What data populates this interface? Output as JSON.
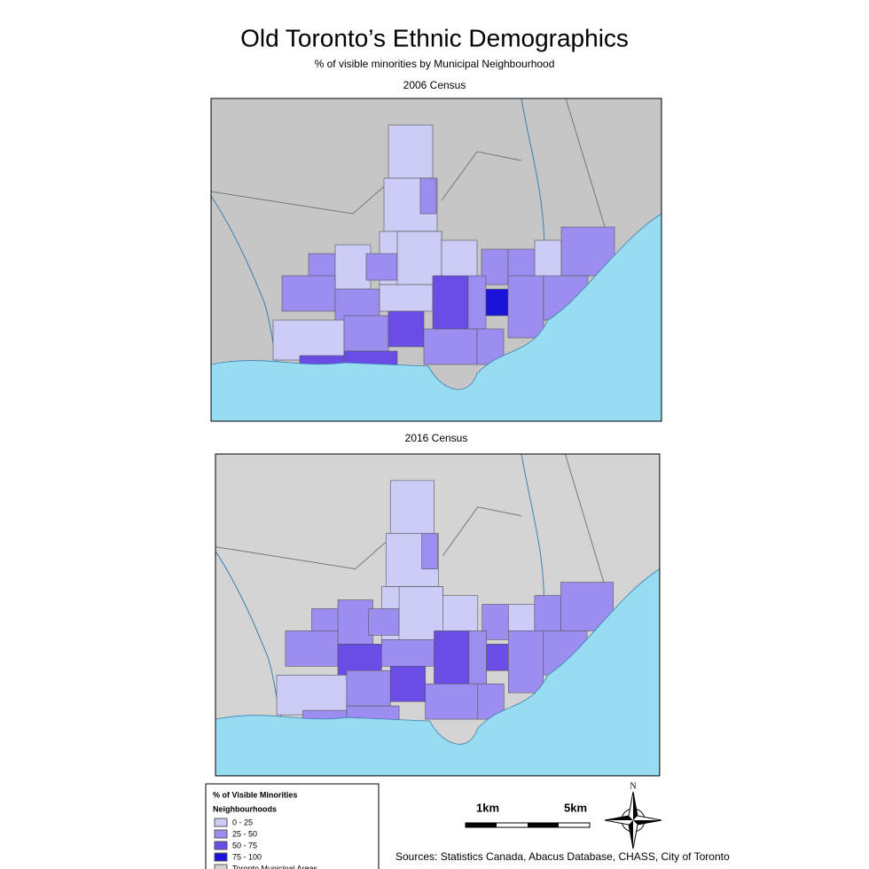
{
  "title": "Old Toronto’s Ethnic Demographics",
  "subtitle": "% of visible minorities by Municipal Neighbourhood",
  "maps": [
    {
      "title": "2006 Census"
    },
    {
      "title": "2016 Census"
    }
  ],
  "legend": {
    "title": "% of Visible Minorities",
    "heading": "Neighbourhoods",
    "items": [
      {
        "label": "0 - 25",
        "color": "#ccccf7"
      },
      {
        "label": "25 - 50",
        "color": "#9c8ef0"
      },
      {
        "label": "50 - 75",
        "color": "#6a4de6"
      },
      {
        "label": "75 - 100",
        "color": "#1a12d8"
      },
      {
        "label": "Toronto Municipal Areas",
        "color": "#d4d4d4"
      }
    ]
  },
  "scale": {
    "labels": [
      "1km",
      "5km"
    ]
  },
  "north": "N",
  "sources": "Sources: Statistics Canada, Abacus Database, CHASS, City of Toronto"
}
